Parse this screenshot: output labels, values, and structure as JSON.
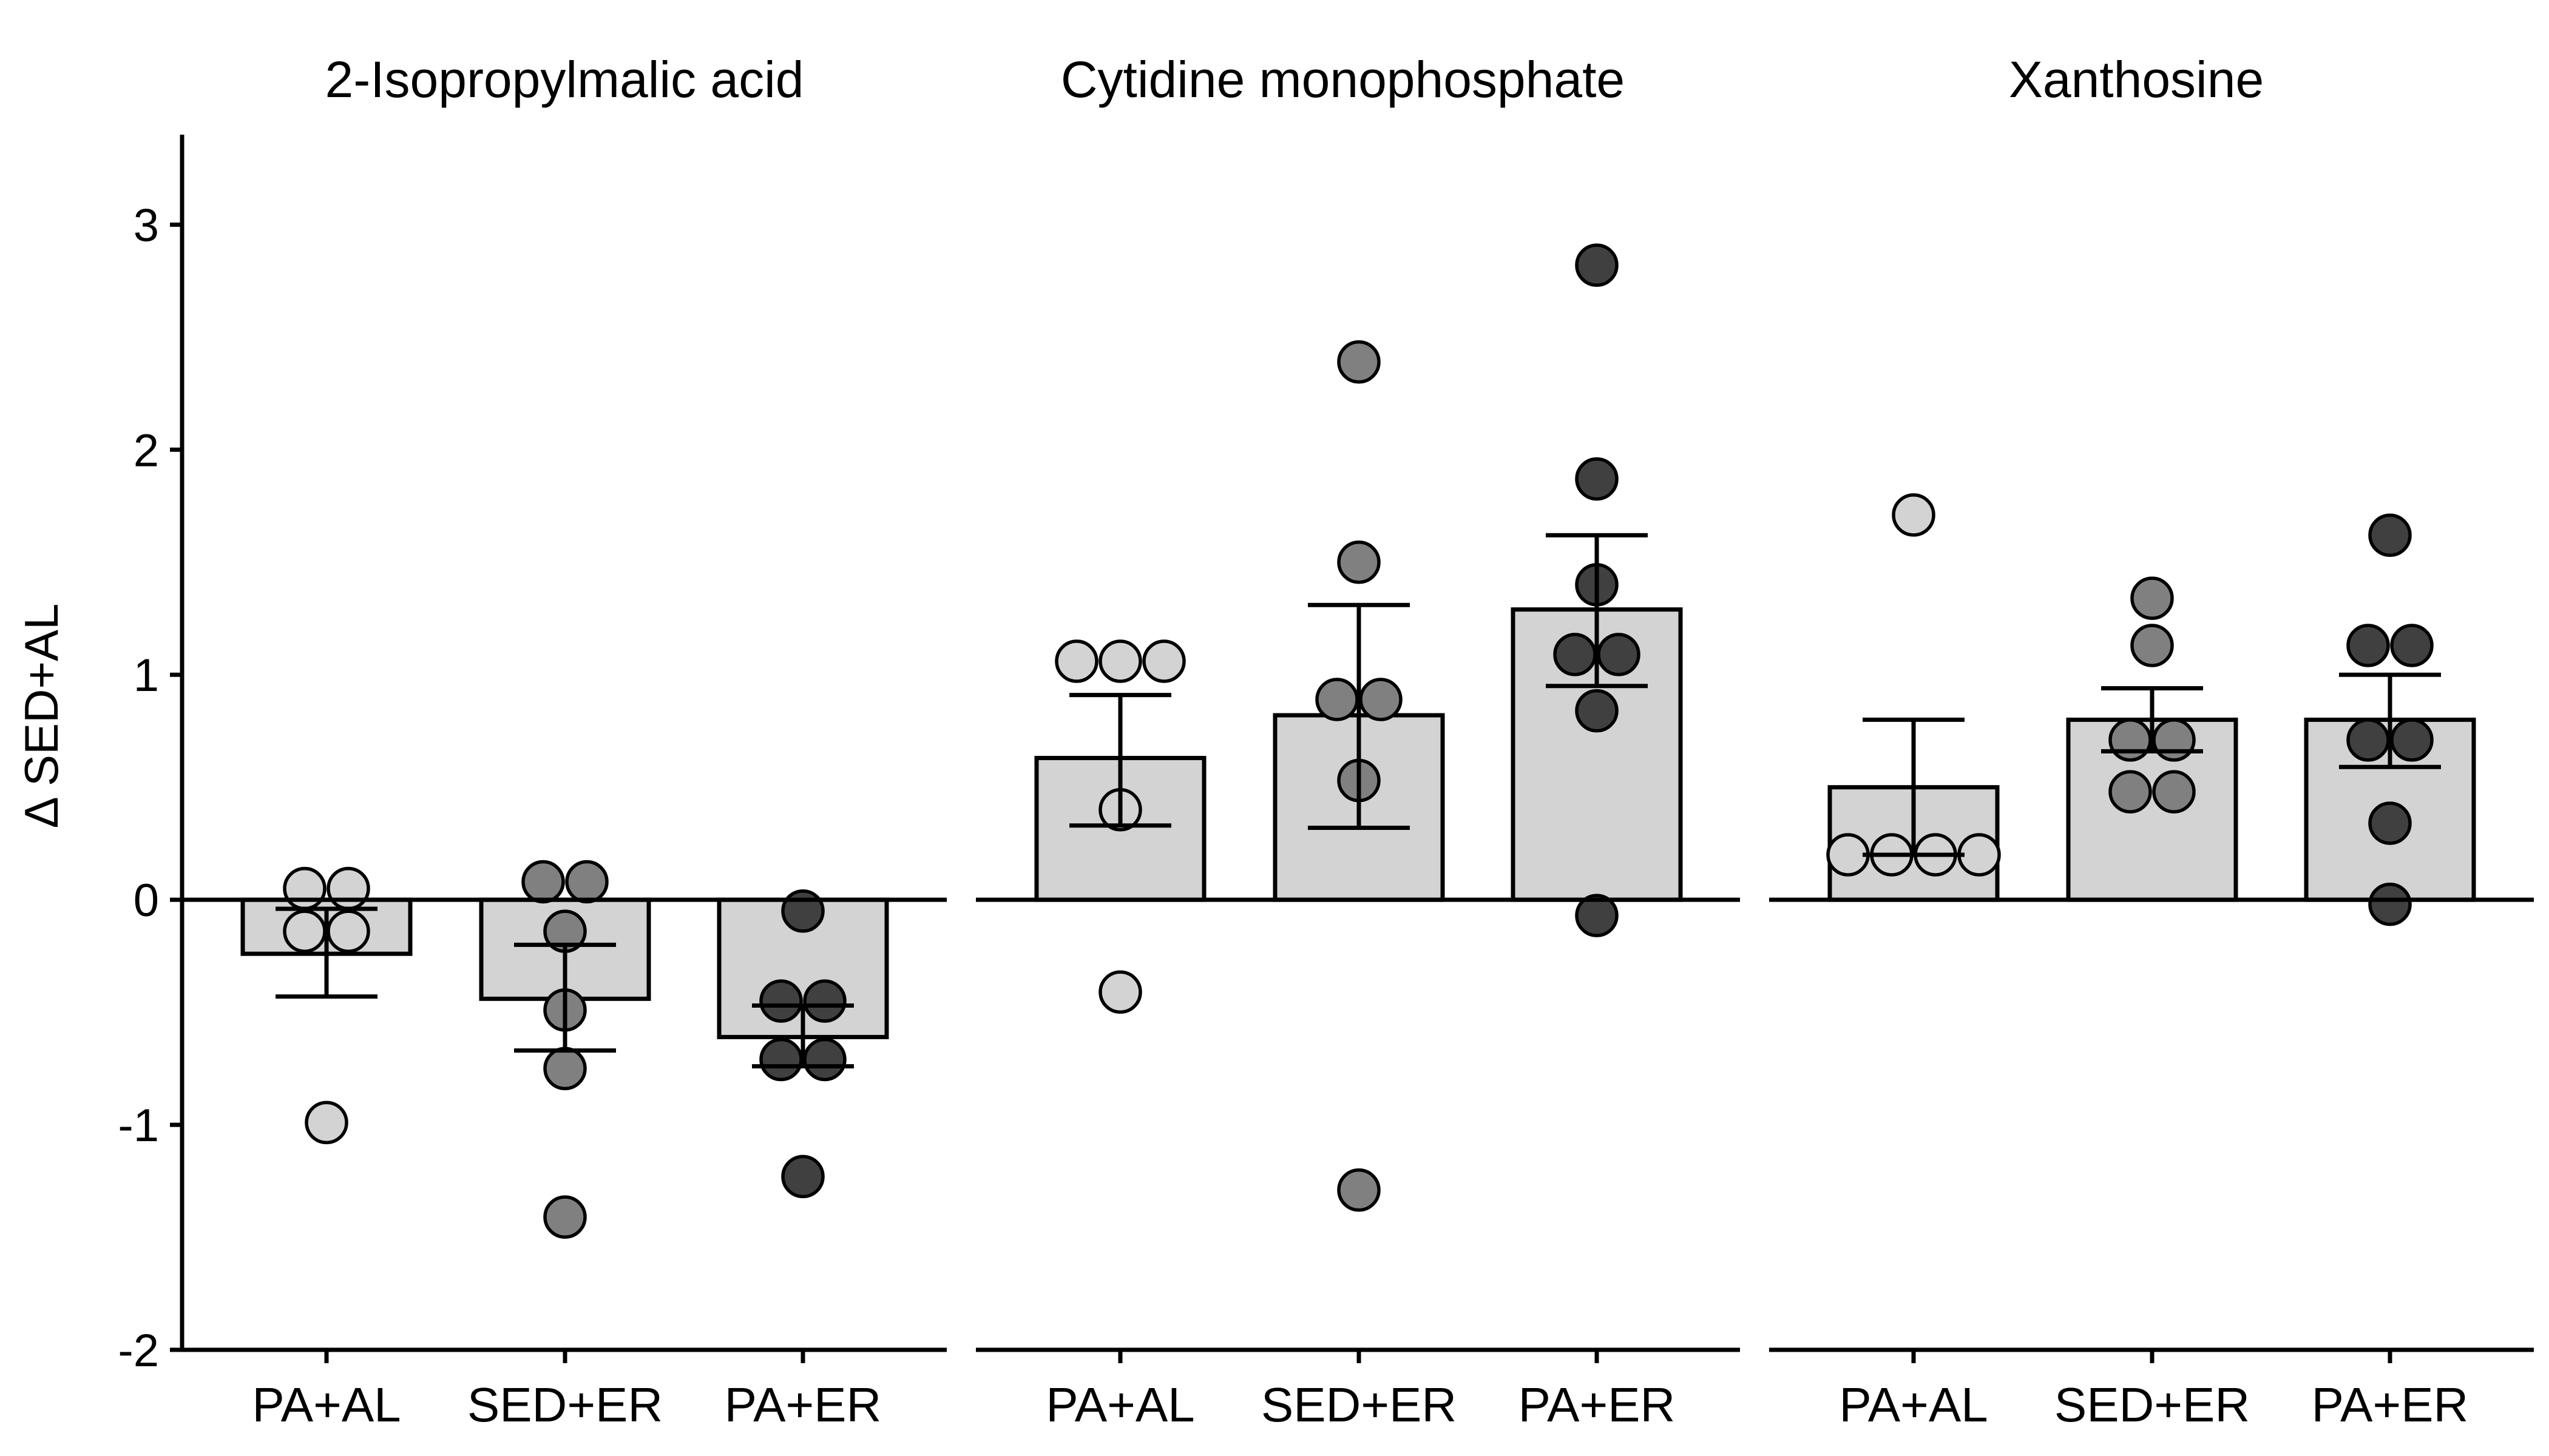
{
  "chart_data": {
    "type": "bar",
    "ylabel": "Δ SED+AL",
    "ylim": [
      -2,
      3.4
    ],
    "yticks": [
      -2,
      -1,
      0,
      1,
      2,
      3
    ],
    "categories": [
      "PA+AL",
      "SED+ER",
      "PA+ER"
    ],
    "colors": {
      "bar_fill": "#d3d3d3",
      "groups": {
        "PA+AL": "#d3d3d3",
        "SED+ER": "#808080",
        "PA+ER": "#404040"
      }
    },
    "panels": [
      {
        "title": "2-Isopropylmalic acid",
        "bars": [
          {
            "group": "PA+AL",
            "mean": -0.24,
            "err_low": -0.43,
            "err_high": -0.04,
            "points": [
              -0.14,
              -0.14,
              0.05,
              0.05,
              -0.99
            ]
          },
          {
            "group": "SED+ER",
            "mean": -0.44,
            "err_low": -0.67,
            "err_high": -0.2,
            "points": [
              0.08,
              0.08,
              -0.14,
              -0.49,
              -0.75,
              -1.41
            ]
          },
          {
            "group": "PA+ER",
            "mean": -0.61,
            "err_low": -0.74,
            "err_high": -0.47,
            "points": [
              -0.05,
              -0.45,
              -0.45,
              -0.71,
              -0.71,
              -1.23
            ]
          }
        ]
      },
      {
        "title": "Cytidine monophosphate",
        "bars": [
          {
            "group": "PA+AL",
            "mean": 0.63,
            "err_low": 0.33,
            "err_high": 0.91,
            "points": [
              1.06,
              1.06,
              1.06,
              0.4,
              -0.41
            ]
          },
          {
            "group": "SED+ER",
            "mean": 0.82,
            "err_low": 0.32,
            "err_high": 1.31,
            "points": [
              2.39,
              1.5,
              0.89,
              0.89,
              0.53,
              -1.29
            ]
          },
          {
            "group": "PA+ER",
            "mean": 1.29,
            "err_low": 0.95,
            "err_high": 1.62,
            "points": [
              2.82,
              1.87,
              1.4,
              1.09,
              1.09,
              0.84,
              -0.07
            ]
          }
        ]
      },
      {
        "title": "Xanthosine",
        "bars": [
          {
            "group": "PA+AL",
            "mean": 0.5,
            "err_low": 0.2,
            "err_high": 0.8,
            "points": [
              1.71,
              0.2,
              0.2,
              0.2,
              0.2
            ]
          },
          {
            "group": "SED+ER",
            "mean": 0.8,
            "err_low": 0.66,
            "err_high": 0.94,
            "points": [
              1.34,
              1.13,
              0.71,
              0.71,
              0.48,
              0.48
            ]
          },
          {
            "group": "PA+ER",
            "mean": 0.8,
            "err_low": 0.59,
            "err_high": 1.0,
            "points": [
              1.62,
              1.13,
              1.13,
              0.71,
              0.71,
              0.34,
              -0.02
            ]
          }
        ]
      }
    ]
  }
}
